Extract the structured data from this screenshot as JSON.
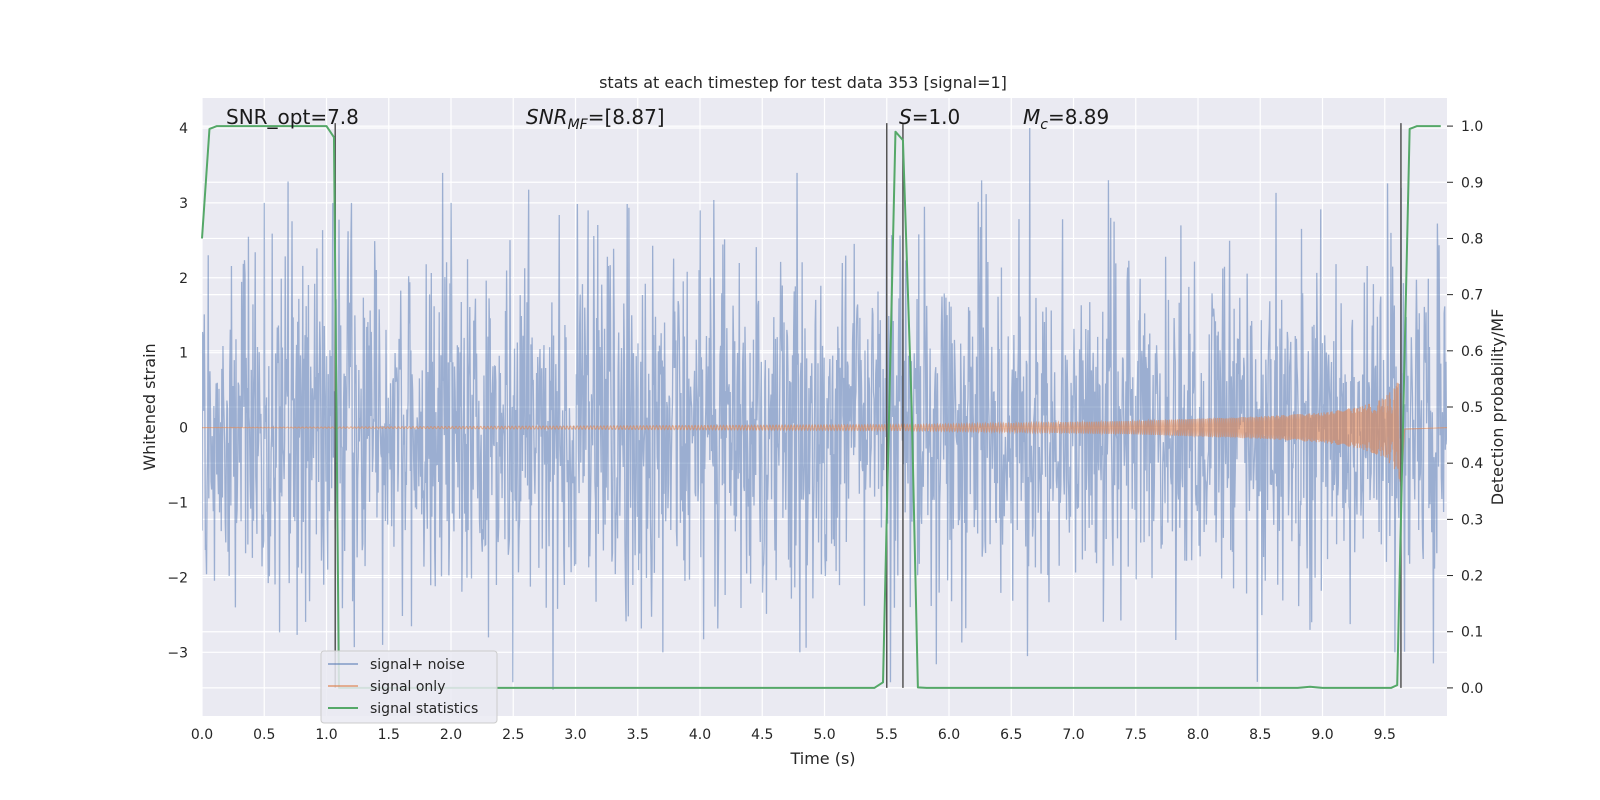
{
  "chart_data": {
    "type": "line",
    "title": "stats at each timestep for test data 353 [signal=1]",
    "xlabel": "Time (s)",
    "ylabel": "Whitened strain",
    "ylabel_right": "Detection probability/MF",
    "xlim": [
      0,
      10
    ],
    "ylim": [
      -3.85,
      4.4
    ],
    "ylim_right": [
      -0.05,
      1.05
    ],
    "x_ticks": [
      "0.0",
      "0.5",
      "1.0",
      "1.5",
      "2.0",
      "2.5",
      "3.0",
      "3.5",
      "4.0",
      "4.5",
      "5.0",
      "5.5",
      "6.0",
      "6.5",
      "7.0",
      "7.5",
      "8.0",
      "8.5",
      "9.0",
      "9.5"
    ],
    "y_ticks": [
      "−3",
      "−2",
      "−1",
      "0",
      "1",
      "2",
      "3",
      "4"
    ],
    "y_ticks_right": [
      "0.0",
      "0.1",
      "0.2",
      "0.3",
      "0.4",
      "0.5",
      "0.6",
      "0.7",
      "0.8",
      "0.9",
      "1.0"
    ],
    "grid": true,
    "legend_placement": "lower-left",
    "annotations": {
      "snr_opt": "SNR_opt=7.8",
      "snr_mf_prefix": "SNR",
      "snr_mf_sub": "MF",
      "snr_mf_value": "=[8.87]",
      "s_symbol": "S",
      "s_value": "=1.0",
      "mc_symbol": "M",
      "mc_sub": "c",
      "mc_value": "=8.89"
    },
    "vertical_lines_x": [
      1.07,
      5.5,
      5.63,
      9.63
    ],
    "series": [
      {
        "name": "signal+ noise",
        "axis": "left",
        "color": "#4c72b0",
        "description_stats": {
          "x_range": [
            0,
            10
          ],
          "typical_amplitude": 1.2,
          "max_peak": 4.0,
          "min_peak": -3.5
        },
        "notable_peaks": [
          [
            0.05,
            2.3
          ],
          [
            0.5,
            3.0
          ],
          [
            1.05,
            3.0
          ],
          [
            1.2,
            3.0
          ],
          [
            2.0,
            3.0
          ],
          [
            2.3,
            3.3
          ],
          [
            3.1,
            2.9
          ],
          [
            4.0,
            2.9
          ],
          [
            5.5,
            3.0
          ],
          [
            6.26,
            3.3
          ],
          [
            6.65,
            4.0
          ],
          [
            7.3,
            2.8
          ],
          [
            9.55,
            2.6
          ],
          [
            9.63,
            3.2
          ],
          [
            0.27,
            -2.4
          ],
          [
            1.45,
            -2.9
          ],
          [
            2.3,
            -2.8
          ],
          [
            2.82,
            -3.5
          ],
          [
            3.7,
            -3.0
          ],
          [
            4.8,
            -3.0
          ],
          [
            6.63,
            -3.05
          ],
          [
            8.9,
            -2.7
          ],
          [
            9.58,
            -3.0
          ]
        ]
      },
      {
        "name": "signal only",
        "axis": "left",
        "color": "#dd8452",
        "envelope": {
          "x": [
            0.0,
            5.7,
            6.5,
            7.5,
            8.5,
            9.0,
            9.3,
            9.5,
            9.6,
            9.63,
            9.66,
            10.0
          ],
          "amplitude": [
            0.0,
            0.04,
            0.06,
            0.09,
            0.15,
            0.2,
            0.28,
            0.4,
            0.6,
            0.8,
            0.02,
            0.0
          ]
        }
      },
      {
        "name": "signal statistics",
        "axis": "right",
        "color": "#55a868",
        "x": [
          0.0,
          0.06,
          0.12,
          1.0,
          1.06,
          1.1,
          1.14,
          5.4,
          5.47,
          5.52,
          5.57,
          5.63,
          5.7,
          5.75,
          5.82,
          8.8,
          8.9,
          9.0,
          9.55,
          9.6,
          9.65,
          9.7,
          9.76,
          9.95
        ],
        "y": [
          0.8,
          0.995,
          1.0,
          1.0,
          0.98,
          0.0,
          0.0,
          0.0,
          0.01,
          0.5,
          0.99,
          0.975,
          0.5,
          0.001,
          0.0,
          0.0,
          0.002,
          0.0,
          0.0,
          0.005,
          0.5,
          0.995,
          1.0,
          1.0
        ]
      }
    ]
  }
}
